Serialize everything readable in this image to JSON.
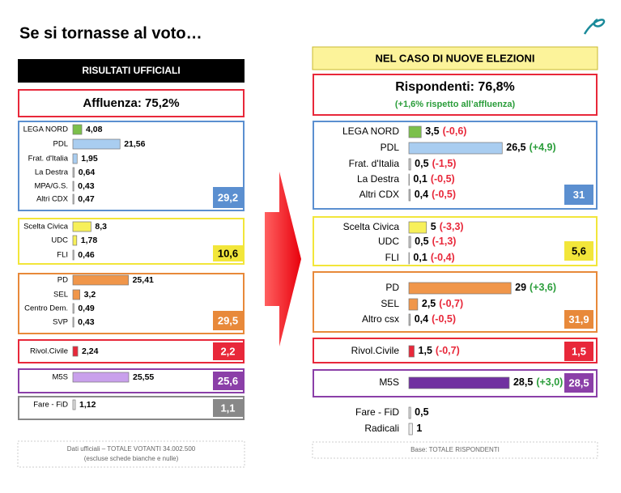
{
  "title": "Se si tornasse al voto…",
  "left": {
    "header": "RISULTATI UFFICIALI",
    "turnout": "Affluenza: 75,2%",
    "groups": [
      {
        "color": "#5b8fd0",
        "total": 29.2,
        "total_label": "29,2",
        "total_text_color": "#ffffff",
        "items": [
          {
            "name": "LEGA NORD",
            "value": 4.08,
            "label": "4,08",
            "color": "#7cc04b"
          },
          {
            "name": "PDL",
            "value": 21.56,
            "label": "21,56",
            "color": "#a9cdf0"
          },
          {
            "name": "Frat. d'Italia",
            "value": 1.95,
            "label": "1,95",
            "color": "#a9cdf0"
          },
          {
            "name": "La Destra",
            "value": 0.64,
            "label": "0,64",
            "color": "#cccccc"
          },
          {
            "name": "MPA/G.S.",
            "value": 0.43,
            "label": "0,43",
            "color": "#cccccc"
          },
          {
            "name": "Altri CDX",
            "value": 0.47,
            "label": "0,47",
            "color": "#cccccc"
          }
        ]
      },
      {
        "color": "#f2e63a",
        "total": 10.6,
        "total_label": "10,6",
        "total_text_color": "#000000",
        "items": [
          {
            "name": "Scelta Civica",
            "value": 8.3,
            "label": "8,3",
            "color": "#f7f05a"
          },
          {
            "name": "UDC",
            "value": 1.78,
            "label": "1,78",
            "color": "#f7f05a"
          },
          {
            "name": "FLI",
            "value": 0.46,
            "label": "0,46",
            "color": "#cccccc"
          }
        ]
      },
      {
        "color": "#e8893a",
        "total": 29.5,
        "total_label": "29,5",
        "total_text_color": "#ffffff",
        "items": [
          {
            "name": "PD",
            "value": 25.41,
            "label": "25,41",
            "color": "#f0964a"
          },
          {
            "name": "SEL",
            "value": 3.2,
            "label": "3,2",
            "color": "#f0964a"
          },
          {
            "name": "Centro Dem.",
            "value": 0.49,
            "label": "0,49",
            "color": "#cccccc"
          },
          {
            "name": "SVP",
            "value": 0.43,
            "label": "0,43",
            "color": "#cccccc"
          }
        ]
      },
      {
        "color": "#e8283a",
        "total": 2.2,
        "total_label": "2,2",
        "total_text_color": "#ffffff",
        "items": [
          {
            "name": "Rivol.Civile",
            "value": 2.24,
            "label": "2,24",
            "color": "#e8283a"
          }
        ]
      },
      {
        "color": "#8b3fa8",
        "total": 25.6,
        "total_label": "25,6",
        "total_text_color": "#ffffff",
        "items": [
          {
            "name": "M5S",
            "value": 25.55,
            "label": "25,55",
            "color": "#c9a0ec"
          }
        ]
      },
      {
        "color": "#888888",
        "total": 1.1,
        "total_label": "1,1",
        "total_text_color": "#ffffff",
        "items": [
          {
            "name": "Fare - FiD",
            "value": 1.12,
            "label": "1,12",
            "color": "#dddddd"
          }
        ]
      }
    ],
    "footnote": [
      "Dati ufficiali – TOTALE VOTANTI 34.002.500",
      "(escluse schede bianche e nulle)"
    ]
  },
  "right": {
    "header": "NEL CASO DI NUOVE ELEZIONI",
    "respondents": "Rispondenti: 76,8%",
    "respondents_note": "(+1,6% rispetto all’affluenza)",
    "groups": [
      {
        "color": "#5b8fd0",
        "total": 31,
        "total_text_color": "#ffffff",
        "items": [
          {
            "name": "LEGA NORD",
            "value": 3.5,
            "label": "3,5",
            "change": -0.6,
            "change_label": "(-0,6)",
            "color": "#7cc04b"
          },
          {
            "name": "PDL",
            "value": 26.5,
            "label": "26,5",
            "change": 4.9,
            "change_label": "(+4,9)",
            "color": "#a9cdf0"
          },
          {
            "name": "Frat. d'Italia",
            "value": 0.5,
            "label": "0,5",
            "change": -1.5,
            "change_label": "(-1,5)",
            "color": "#cccccc"
          },
          {
            "name": "La Destra",
            "value": 0.1,
            "label": "0,1",
            "change": -0.5,
            "change_label": "(-0,5)",
            "color": "#cccccc"
          },
          {
            "name": "Altri CDX",
            "value": 0.4,
            "label": "0,4",
            "change": -0.5,
            "change_label": "(-0,5)",
            "color": "#cccccc"
          }
        ]
      },
      {
        "color": "#f2e63a",
        "total": 5.6,
        "total_label": "5,6",
        "total_text_color": "#000000",
        "items": [
          {
            "name": "Scelta Civica",
            "value": 5,
            "change": -3.3,
            "change_label": "(-3,3)",
            "color": "#f7f05a"
          },
          {
            "name": "UDC",
            "value": 0.5,
            "label": "0,5",
            "change": -1.3,
            "change_label": "(-1,3)",
            "color": "#cccccc"
          },
          {
            "name": "FLI",
            "value": 0.1,
            "label": "0,1",
            "change": -0.4,
            "change_label": "(-0,4)",
            "color": "#cccccc"
          }
        ]
      },
      {
        "color": "#e8893a",
        "total": 31.9,
        "total_label": "31,9",
        "total_text_color": "#ffffff",
        "items": [
          {
            "name": "PD",
            "value": 29,
            "change": 3.6,
            "change_label": "(+3,6)",
            "color": "#f0964a"
          },
          {
            "name": "SEL",
            "value": 2.5,
            "label": "2,5",
            "change": -0.7,
            "change_label": "(-0,7)",
            "color": "#f0964a"
          },
          {
            "name": "Altro csx",
            "value": 0.4,
            "label": "0,4",
            "change": -0.5,
            "change_label": "(-0,5)",
            "color": "#cccccc"
          }
        ]
      },
      {
        "color": "#e8283a",
        "total": 1.5,
        "total_label": "1,5",
        "total_text_color": "#ffffff",
        "items": [
          {
            "name": "Rivol.Civile",
            "value": 1.5,
            "label": "1,5",
            "change": -0.7,
            "change_label": "(-0,7)",
            "color": "#e8283a"
          }
        ]
      },
      {
        "color": "#8b3fa8",
        "total": 28.5,
        "total_label": "28,5",
        "total_text_color": "#ffffff",
        "items": [
          {
            "name": "M5S",
            "value": 28.5,
            "label": "28,5",
            "change": 3.0,
            "change_label": "(+3,0)",
            "color": "#7030a0"
          }
        ]
      }
    ],
    "others": [
      {
        "name": "Fare - FiD",
        "value": 0.5,
        "label": "0,5",
        "color": "#dddddd"
      },
      {
        "name": "Radicali",
        "value": 1,
        "color": "#eeeeee"
      }
    ],
    "footnote": [
      "Base: TOTALE RISPONDENTI"
    ]
  }
}
